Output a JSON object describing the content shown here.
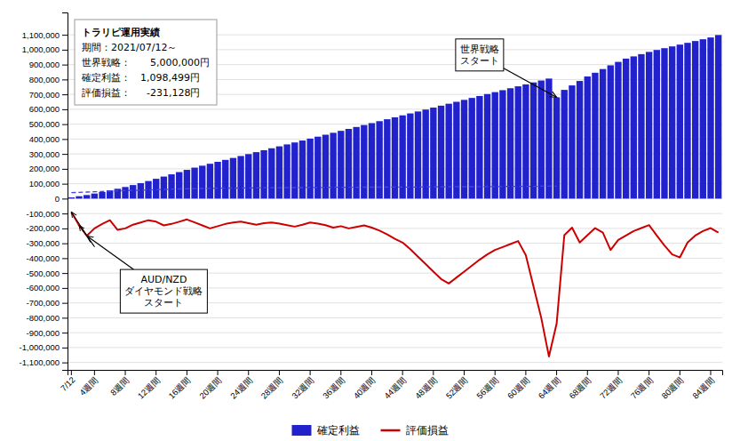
{
  "chart_data": {
    "type": "bar",
    "title": "トラリピ運用実績",
    "subtitle": [
      "期間：2021/07/12～",
      "世界戦略：　　5,000,000円",
      "確定利益：　1,098,499円",
      "評価損益：　  -231,128円"
    ],
    "categories": [
      "7/12",
      null,
      null,
      "4週間",
      null,
      null,
      null,
      "8週間",
      null,
      null,
      null,
      "12週間",
      null,
      null,
      null,
      "16週間",
      null,
      null,
      null,
      "20週間",
      null,
      null,
      null,
      "24週間",
      null,
      null,
      null,
      "28週間",
      null,
      null,
      null,
      "32週間",
      null,
      null,
      null,
      "36週間",
      null,
      null,
      null,
      "40週間",
      null,
      null,
      null,
      "44週間",
      null,
      null,
      null,
      "48週間",
      null,
      null,
      null,
      "52週間",
      null,
      null,
      null,
      "56週間",
      null,
      null,
      null,
      "60週間",
      null,
      null,
      null,
      "64週間",
      null,
      null,
      null,
      "68週間",
      null,
      null,
      null,
      "72週間",
      null,
      null,
      null,
      "76週間",
      null,
      null,
      null,
      "80週間",
      null,
      null,
      null,
      "84週間",
      null
    ],
    "series": [
      {
        "name": "確定利益",
        "type": "bar",
        "color": "#2222cc",
        "values": [
          8000,
          16000,
          24000,
          34000,
          44000,
          55000,
          66000,
          78000,
          91000,
          104000,
          118000,
          133000,
          148000,
          163000,
          178000,
          193000,
          208000,
          221000,
          234000,
          247000,
          260000,
          273000,
          286000,
          299000,
          312000,
          325000,
          338000,
          351000,
          364000,
          377000,
          390000,
          403000,
          416000,
          429000,
          442000,
          455000,
          468000,
          481000,
          494000,
          507000,
          520000,
          533000,
          546000,
          559000,
          572000,
          585000,
          598000,
          611000,
          624000,
          637000,
          650000,
          663000,
          676000,
          689000,
          702000,
          715000,
          728000,
          741000,
          754000,
          767000,
          780000,
          793000,
          806000,
          680000,
          730000,
          760000,
          790000,
          820000,
          845000,
          870000,
          895000,
          918000,
          940000,
          955000,
          970000,
          985000,
          998000,
          1010000,
          1022000,
          1034000,
          1046000,
          1058000,
          1070000,
          1082000,
          1098499
        ]
      },
      {
        "type": "line",
        "color": "#4444dd",
        "line_style": "dashed",
        "values": [
          40000,
          42000,
          44000,
          46000,
          48000,
          50000,
          52000,
          54000,
          55000,
          56000,
          58000,
          60000,
          62000,
          64000,
          65000,
          66000,
          67000,
          68000,
          69000,
          70000,
          70000,
          71000,
          71000,
          72000,
          72000,
          73000,
          73000,
          73000,
          74000,
          74000,
          74000,
          75000,
          75000,
          75000,
          76000,
          76000,
          76000,
          76000,
          77000,
          77000,
          77000,
          77000,
          78000,
          78000,
          78000,
          78000,
          79000,
          79000,
          79000,
          79000,
          80000,
          80000,
          80000,
          81000,
          81000,
          81000,
          81000,
          82000,
          82000,
          82000,
          82000,
          83000,
          83000,
          83000,
          null,
          null,
          null,
          null,
          null,
          null,
          null,
          null,
          null,
          null,
          null,
          null,
          null,
          null,
          null,
          null,
          null,
          null,
          null,
          null,
          null
        ]
      },
      {
        "name": "評価損益",
        "type": "line",
        "color": "#cc0000",
        "line_style": "solid",
        "values": [
          -90000,
          -180000,
          -250000,
          -200000,
          -170000,
          -145000,
          -210000,
          -200000,
          -175000,
          -160000,
          -145000,
          -155000,
          -180000,
          -170000,
          -155000,
          -140000,
          -160000,
          -180000,
          -200000,
          -185000,
          -170000,
          -160000,
          -155000,
          -165000,
          -175000,
          -165000,
          -160000,
          -168000,
          -178000,
          -188000,
          -175000,
          -160000,
          -168000,
          -178000,
          -195000,
          -185000,
          -200000,
          -190000,
          -180000,
          -195000,
          -215000,
          -240000,
          -270000,
          -295000,
          -340000,
          -390000,
          -440000,
          -490000,
          -540000,
          -570000,
          -530000,
          -490000,
          -450000,
          -410000,
          -375000,
          -345000,
          -325000,
          -305000,
          -285000,
          -380000,
          -590000,
          -800000,
          -1060000,
          -840000,
          -245000,
          -195000,
          -295000,
          -245000,
          -198000,
          -228000,
          -345000,
          -278000,
          -248000,
          -218000,
          -198000,
          -178000,
          -248000,
          -315000,
          -375000,
          -395000,
          -295000,
          -248000,
          -218000,
          -198000,
          -228000
        ]
      }
    ],
    "ylim": [
      -1150000,
      1250000
    ],
    "yticks": [
      {
        "value": 1100000,
        "label": "1,100,000"
      },
      {
        "value": 1000000,
        "label": "1,000,000"
      },
      {
        "value": 900000,
        "label": "900,000"
      },
      {
        "value": 800000,
        "label": "800,000"
      },
      {
        "value": 700000,
        "label": "700,000"
      },
      {
        "value": 600000,
        "label": "600,000"
      },
      {
        "value": 500000,
        "label": "500,000"
      },
      {
        "value": 400000,
        "label": "400,000"
      },
      {
        "value": 300000,
        "label": "300,000"
      },
      {
        "value": 200000,
        "label": "200,000"
      },
      {
        "value": 100000,
        "label": "100,000"
      },
      0,
      {
        "value": -100000,
        "label": "-100,000"
      },
      {
        "value": -200000,
        "label": "-200,000"
      },
      {
        "value": -300000,
        "label": "-300,000"
      },
      {
        "value": -400000,
        "label": "-400,000"
      },
      {
        "value": -500000,
        "label": "-500,000"
      },
      {
        "value": -600000,
        "label": "-600,000"
      },
      {
        "value": -700000,
        "label": "-700,000"
      },
      {
        "value": -800000,
        "label": "-800,000"
      },
      {
        "value": -900000,
        "label": "-900,000"
      },
      {
        "value": -1000000,
        "label": "-1,000,000"
      },
      {
        "value": -1100000,
        "label": "-1,100,000"
      }
    ],
    "grid": true,
    "legend": "bottom",
    "annotations": [
      {
        "series": 2,
        "index": 0
      },
      {
        "series": 2,
        "index": 1
      },
      {
        "text": [
          "世界戦略",
          "スタート"
        ],
        "series": 0,
        "index": 63
      },
      {
        "text": [
          "AUD/NZD",
          "ダイヤモンド戦略",
          "スタート"
        ],
        "series": 2,
        "index": 2
      }
    ]
  }
}
